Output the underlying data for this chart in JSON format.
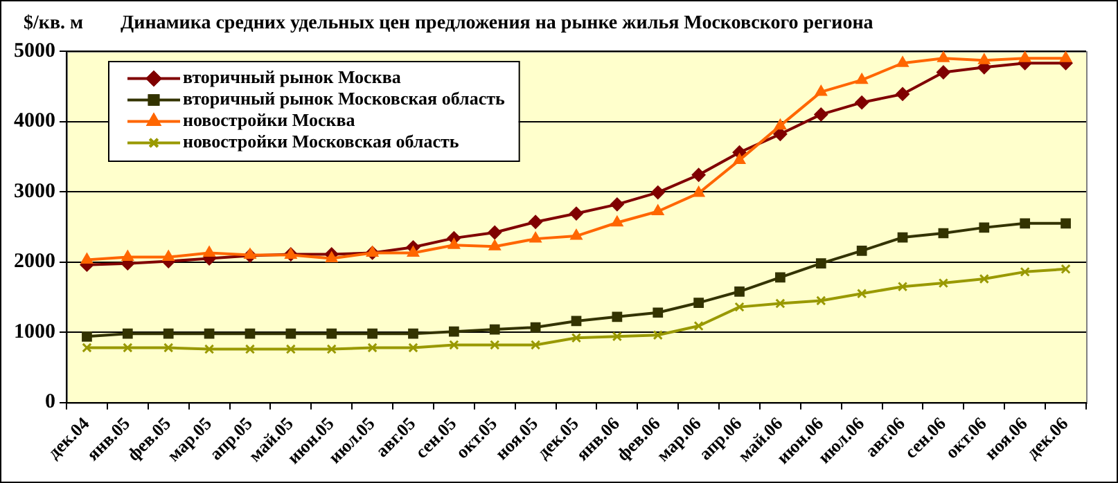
{
  "chart_data": {
    "type": "line",
    "title": "Динамика средних удельных цен предложения на рынке жилья Московского региона",
    "ylabel": "$/кв. м",
    "categories": [
      "дек.04",
      "янв.05",
      "фев.05",
      "мар.05",
      "апр.05",
      "май.05",
      "июн.05",
      "июл.05",
      "авг.05",
      "сен.05",
      "окт.05",
      "ноя.05",
      "дек.05",
      "янв.06",
      "фев.06",
      "мар.06",
      "апр.06",
      "май.06",
      "июн.06",
      "июл.06",
      "авг.06",
      "сен.06",
      "окт.06",
      "ноя.06",
      "дек.06"
    ],
    "series": [
      {
        "name": "вторичный рынок Москва",
        "color": "#800000",
        "marker": "diamond",
        "values": [
          1960,
          1980,
          2010,
          2050,
          2090,
          2110,
          2110,
          2130,
          2210,
          2340,
          2420,
          2570,
          2690,
          2820,
          2990,
          3240,
          3560,
          3820,
          4100,
          4270,
          4390,
          4700,
          4770,
          4830,
          4830
        ]
      },
      {
        "name": "вторичный рынок Московская область",
        "color": "#333300",
        "marker": "square",
        "values": [
          940,
          980,
          980,
          980,
          980,
          980,
          980,
          980,
          980,
          1010,
          1040,
          1070,
          1160,
          1220,
          1280,
          1420,
          1580,
          1780,
          1980,
          2160,
          2350,
          2410,
          2490,
          2550,
          2550
        ]
      },
      {
        "name": "новостройки Москва",
        "color": "#ff6600",
        "marker": "triangle",
        "values": [
          2030,
          2070,
          2070,
          2130,
          2100,
          2100,
          2050,
          2130,
          2130,
          2240,
          2220,
          2330,
          2370,
          2560,
          2720,
          2980,
          3450,
          3940,
          4420,
          4590,
          4830,
          4900,
          4870,
          4900,
          4900
        ]
      },
      {
        "name": "новостройки Московская область",
        "color": "#999900",
        "marker": "cross",
        "values": [
          780,
          780,
          780,
          760,
          760,
          760,
          760,
          780,
          780,
          820,
          820,
          820,
          920,
          940,
          960,
          1090,
          1360,
          1410,
          1450,
          1550,
          1650,
          1700,
          1760,
          1860,
          1900
        ]
      }
    ],
    "ylim": [
      0,
      5000
    ],
    "yticks": [
      0,
      1000,
      2000,
      3000,
      4000,
      5000
    ],
    "grid": "y",
    "legend": "top left",
    "line_style": "solid"
  }
}
